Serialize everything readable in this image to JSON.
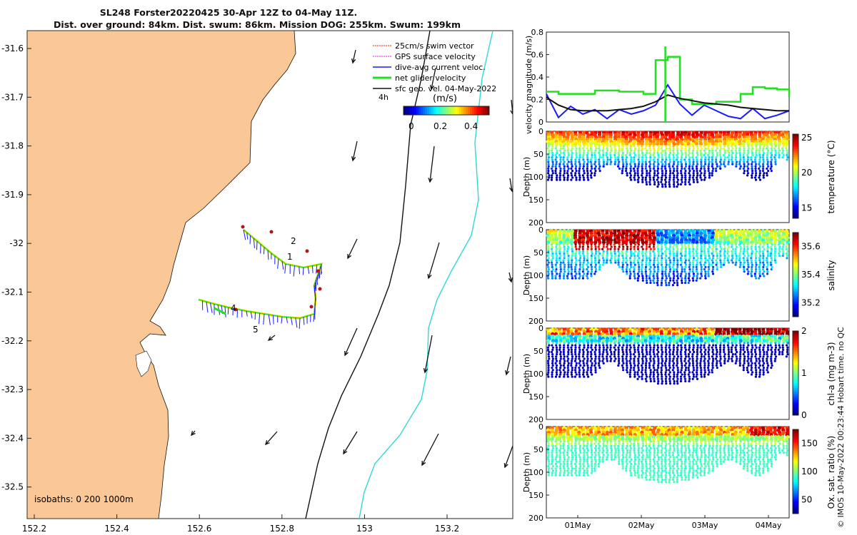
{
  "title_line1": "SL248 Forster20220425 30-Apr 12Z to 04-May 11Z.",
  "title_line2": "Dist. over ground: 84km. Dist. swum: 86km. Mission DOG: 255km. Swum: 199km",
  "side_note": "© IMOS 10-May-2022 00:23:44 Hobart time. no QC",
  "map": {
    "legend": [
      {
        "label": "25cm/s swim vector",
        "color": "#e0201b"
      },
      {
        "label": "GPS surface velocity",
        "color": "#e020e0"
      },
      {
        "label": "dive-avg current veloc.",
        "color": "#1a1aff"
      },
      {
        "label": "net glider velocity",
        "color": "#20e020"
      },
      {
        "label": "sfc geo. vel. 04-May-2022",
        "color": "#111111"
      }
    ],
    "time_label": "4h",
    "colorbar_label": "(m/s)",
    "colorbar_ticks": [
      "0",
      "0.2",
      "0.4"
    ],
    "isobaths_label": "isobaths: 0   200  1000m",
    "track_labels": [
      "1",
      "2",
      "4",
      "5"
    ],
    "lat_ticks": [
      "-31.6",
      "-31.7",
      "-31.8",
      "-31.9",
      "-32",
      "-32.1",
      "-32.2",
      "-32.3",
      "-32.4",
      "-32.5"
    ],
    "lon_ticks": [
      "152.2",
      "152.4",
      "152.6",
      "152.8",
      "153",
      "153.2"
    ],
    "colors": {
      "land": "#f9c896",
      "isobath200": "#111111",
      "isobath1000": "#30d8d8"
    }
  },
  "chart_data": [
    {
      "type": "line",
      "title": "",
      "ylabel": "velocity magnitude (m/s)",
      "ylim": [
        0,
        0.8
      ],
      "yticks": [
        "0",
        "0.2",
        "0.4",
        "0.6",
        "0.8"
      ],
      "x": [
        0,
        0.05,
        0.1,
        0.15,
        0.2,
        0.25,
        0.3,
        0.35,
        0.4,
        0.45,
        0.5,
        0.55,
        0.6,
        0.65,
        0.7,
        0.75,
        0.8,
        0.85,
        0.9,
        0.95,
        1
      ],
      "series": [
        {
          "name": "net glider velocity",
          "color": "#20e020",
          "values": [
            0.27,
            0.25,
            0.25,
            0.25,
            0.28,
            0.28,
            0.27,
            0.27,
            0.25,
            0.55,
            0.58,
            0.2,
            0.16,
            0.16,
            0.18,
            0.18,
            0.25,
            0.31,
            0.3,
            0.29,
            0.22
          ]
        },
        {
          "name": "dive-avg current",
          "color": "#1a1aff",
          "values": [
            0.25,
            0.04,
            0.14,
            0.07,
            0.11,
            0.03,
            0.11,
            0.07,
            0.1,
            0.15,
            0.33,
            0.16,
            0.06,
            0.15,
            0.1,
            0.05,
            0.03,
            0.12,
            0.03,
            0.06,
            0.1
          ]
        },
        {
          "name": "sfc geo. vel.",
          "color": "#111111",
          "values": [
            0.22,
            0.15,
            0.11,
            0.1,
            0.1,
            0.1,
            0.11,
            0.12,
            0.14,
            0.18,
            0.24,
            0.21,
            0.19,
            0.17,
            0.16,
            0.15,
            0.13,
            0.12,
            0.11,
            0.1,
            0.1
          ]
        }
      ]
    },
    {
      "type": "scatter",
      "variable": "temperature",
      "ylabel": "Depth (m)",
      "colorbar_label": "temperature (°C)",
      "colorbar_ticks": [
        "25",
        "20",
        "15"
      ],
      "colorbar_range": [
        13.5,
        25.5
      ],
      "ylim": [
        0,
        200
      ],
      "yticks": [
        "0",
        "50",
        "100",
        "150",
        "200"
      ]
    },
    {
      "type": "scatter",
      "variable": "salinity",
      "ylabel": "Depth (m)",
      "colorbar_label": "salinity",
      "colorbar_ticks": [
        "35.6",
        "35.4",
        "35.2"
      ],
      "colorbar_range": [
        35.1,
        35.7
      ],
      "ylim": [
        0,
        200
      ],
      "yticks": [
        "0",
        "50",
        "100",
        "150",
        "200"
      ]
    },
    {
      "type": "scatter",
      "variable": "chl-a",
      "ylabel": "Depth (m)",
      "colorbar_label": "chl-a (mg m-3)",
      "colorbar_ticks": [
        "2",
        "1",
        "0"
      ],
      "colorbar_range": [
        0,
        2
      ],
      "ylim": [
        0,
        200
      ],
      "yticks": [
        "0",
        "50",
        "100",
        "150",
        "200"
      ]
    },
    {
      "type": "scatter",
      "variable": "oxygen",
      "ylabel": "Depth (m)",
      "colorbar_label": "Ox. sat. ratio (%)",
      "colorbar_ticks": [
        "150",
        "100",
        "50"
      ],
      "colorbar_range": [
        25,
        175
      ],
      "ylim": [
        0,
        200
      ],
      "yticks": [
        "0",
        "50",
        "100",
        "150",
        "200"
      ],
      "xticks": [
        "01May",
        "02May",
        "03May",
        "04May"
      ]
    }
  ]
}
